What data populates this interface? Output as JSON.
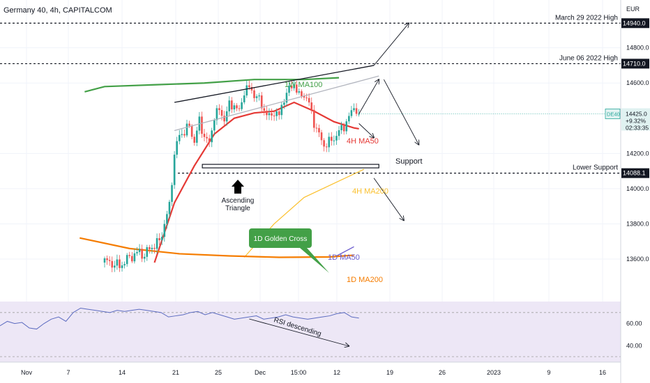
{
  "header": {
    "title": "Germany 40, 4h, CAPITALCOM",
    "currency": "EUR"
  },
  "chart_data": {
    "type": "candlestick",
    "symbol": "DE40",
    "x_ticks": [
      "Nov",
      "7",
      "14",
      "21",
      "25",
      "Dec",
      "15:00",
      "12",
      "19",
      "26",
      "2023",
      "9",
      "16"
    ],
    "y_ticks": [
      "14800.0",
      "14600.0",
      "14200.0",
      "14000.0",
      "13800.0",
      "13600.0"
    ],
    "ylim": [
      13430,
      15040
    ],
    "price_levels": [
      {
        "label": "March 29 2022 High",
        "value": 14940.0,
        "tag": "14940.0"
      },
      {
        "label": "June 06 2022 High",
        "value": 14710.0,
        "tag": "14710.0"
      },
      {
        "label": "Lower Support",
        "value": 14088.1,
        "tag": "14088.1"
      }
    ],
    "last_price": {
      "symbol": "DE40",
      "value": "14425.0",
      "change": "+9.32%",
      "timer": "02:33:35"
    },
    "close_path": [
      [
        0,
        13590
      ],
      [
        3,
        13560
      ],
      [
        5,
        13610
      ],
      [
        7,
        13640
      ],
      [
        8,
        13620
      ],
      [
        9,
        13660
      ],
      [
        11,
        13700
      ],
      [
        13,
        13900
      ],
      [
        14,
        14200
      ],
      [
        15,
        14300
      ],
      [
        16,
        14330
      ],
      [
        17,
        14350
      ],
      [
        18,
        14270
      ],
      [
        19,
        14380
      ],
      [
        20,
        14300
      ],
      [
        21,
        14250
      ],
      [
        22,
        14420
      ],
      [
        23,
        14440
      ],
      [
        24,
        14400
      ],
      [
        25,
        14470
      ],
      [
        26,
        14480
      ],
      [
        27,
        14430
      ],
      [
        28,
        14560
      ],
      [
        29,
        14570
      ],
      [
        30,
        14540
      ],
      [
        31,
        14500
      ],
      [
        32,
        14450
      ],
      [
        33,
        14400
      ],
      [
        34,
        14440
      ],
      [
        35,
        14410
      ],
      [
        36,
        14520
      ],
      [
        37,
        14560
      ],
      [
        38,
        14600
      ],
      [
        39,
        14520
      ],
      [
        40,
        14540
      ],
      [
        41,
        14480
      ],
      [
        42,
        14380
      ],
      [
        43,
        14300
      ],
      [
        44,
        14250
      ],
      [
        45,
        14260
      ],
      [
        46,
        14290
      ],
      [
        47,
        14320
      ],
      [
        48,
        14360
      ],
      [
        49,
        14400
      ],
      [
        50,
        14470
      ],
      [
        51,
        14425
      ]
    ],
    "series": [
      {
        "name": "1W MA100",
        "color": "#43a047",
        "values": [
          [
            -4,
            14550
          ],
          [
            0,
            14580
          ],
          [
            10,
            14590
          ],
          [
            20,
            14600
          ],
          [
            30,
            14620
          ],
          [
            40,
            14620
          ],
          [
            47,
            14630
          ]
        ]
      },
      {
        "name": "4H MA50",
        "color": "#e53935",
        "values": [
          [
            10,
            13580
          ],
          [
            14,
            13920
          ],
          [
            18,
            14130
          ],
          [
            22,
            14310
          ],
          [
            26,
            14400
          ],
          [
            30,
            14430
          ],
          [
            34,
            14440
          ],
          [
            38,
            14490
          ],
          [
            42,
            14440
          ],
          [
            46,
            14380
          ],
          [
            50,
            14345
          ],
          [
            51,
            14340
          ]
        ]
      },
      {
        "name": "4H MA200",
        "color": "#fbc02d",
        "values": [
          [
            28,
            13610
          ],
          [
            34,
            13800
          ],
          [
            40,
            13950
          ],
          [
            46,
            14030
          ],
          [
            52,
            14110
          ]
        ]
      },
      {
        "name": "1D MA50",
        "color": "#6a5acd",
        "values": [
          [
            46,
            13610
          ],
          [
            50,
            13670
          ]
        ]
      },
      {
        "name": "1D MA200",
        "color": "#f57c00",
        "values": [
          [
            -5,
            13720
          ],
          [
            5,
            13660
          ],
          [
            15,
            13630
          ],
          [
            25,
            13618
          ],
          [
            35,
            13610
          ],
          [
            45,
            13612
          ],
          [
            50,
            13622
          ]
        ]
      }
    ],
    "trendlines": [
      {
        "name": "upper",
        "from": [
          14,
          14490
        ],
        "to": [
          54,
          14700
        ]
      },
      {
        "name": "lower",
        "from": [
          14,
          14330
        ],
        "to": [
          55,
          14640
        ]
      }
    ],
    "support_box": {
      "label": "Support",
      "from": [
        14,
        14138
      ],
      "to": [
        55,
        14118
      ]
    },
    "annotations": {
      "ascending_triangle": [
        "Ascending",
        "Triangle"
      ],
      "golden_cross": "1D Golden Cross",
      "rsi_descending": "RSI descending",
      "ma_labels": [
        "1W MA100",
        "4H MA50",
        "4H MA200",
        "1D MA50",
        "1D MA200"
      ]
    },
    "rsi": {
      "y_ticks": [
        "60.00",
        "40.00"
      ],
      "values": [
        58,
        62,
        60,
        61,
        56,
        55,
        60,
        64,
        66,
        62,
        70,
        74,
        73,
        72,
        71,
        70,
        72,
        71,
        72,
        73,
        72,
        71,
        70,
        66,
        67,
        68,
        70,
        71,
        68,
        70,
        68,
        66,
        64,
        65,
        66,
        67,
        64,
        65,
        66,
        68,
        66,
        65,
        64,
        65,
        66,
        67,
        69,
        70,
        66,
        65
      ]
    }
  }
}
